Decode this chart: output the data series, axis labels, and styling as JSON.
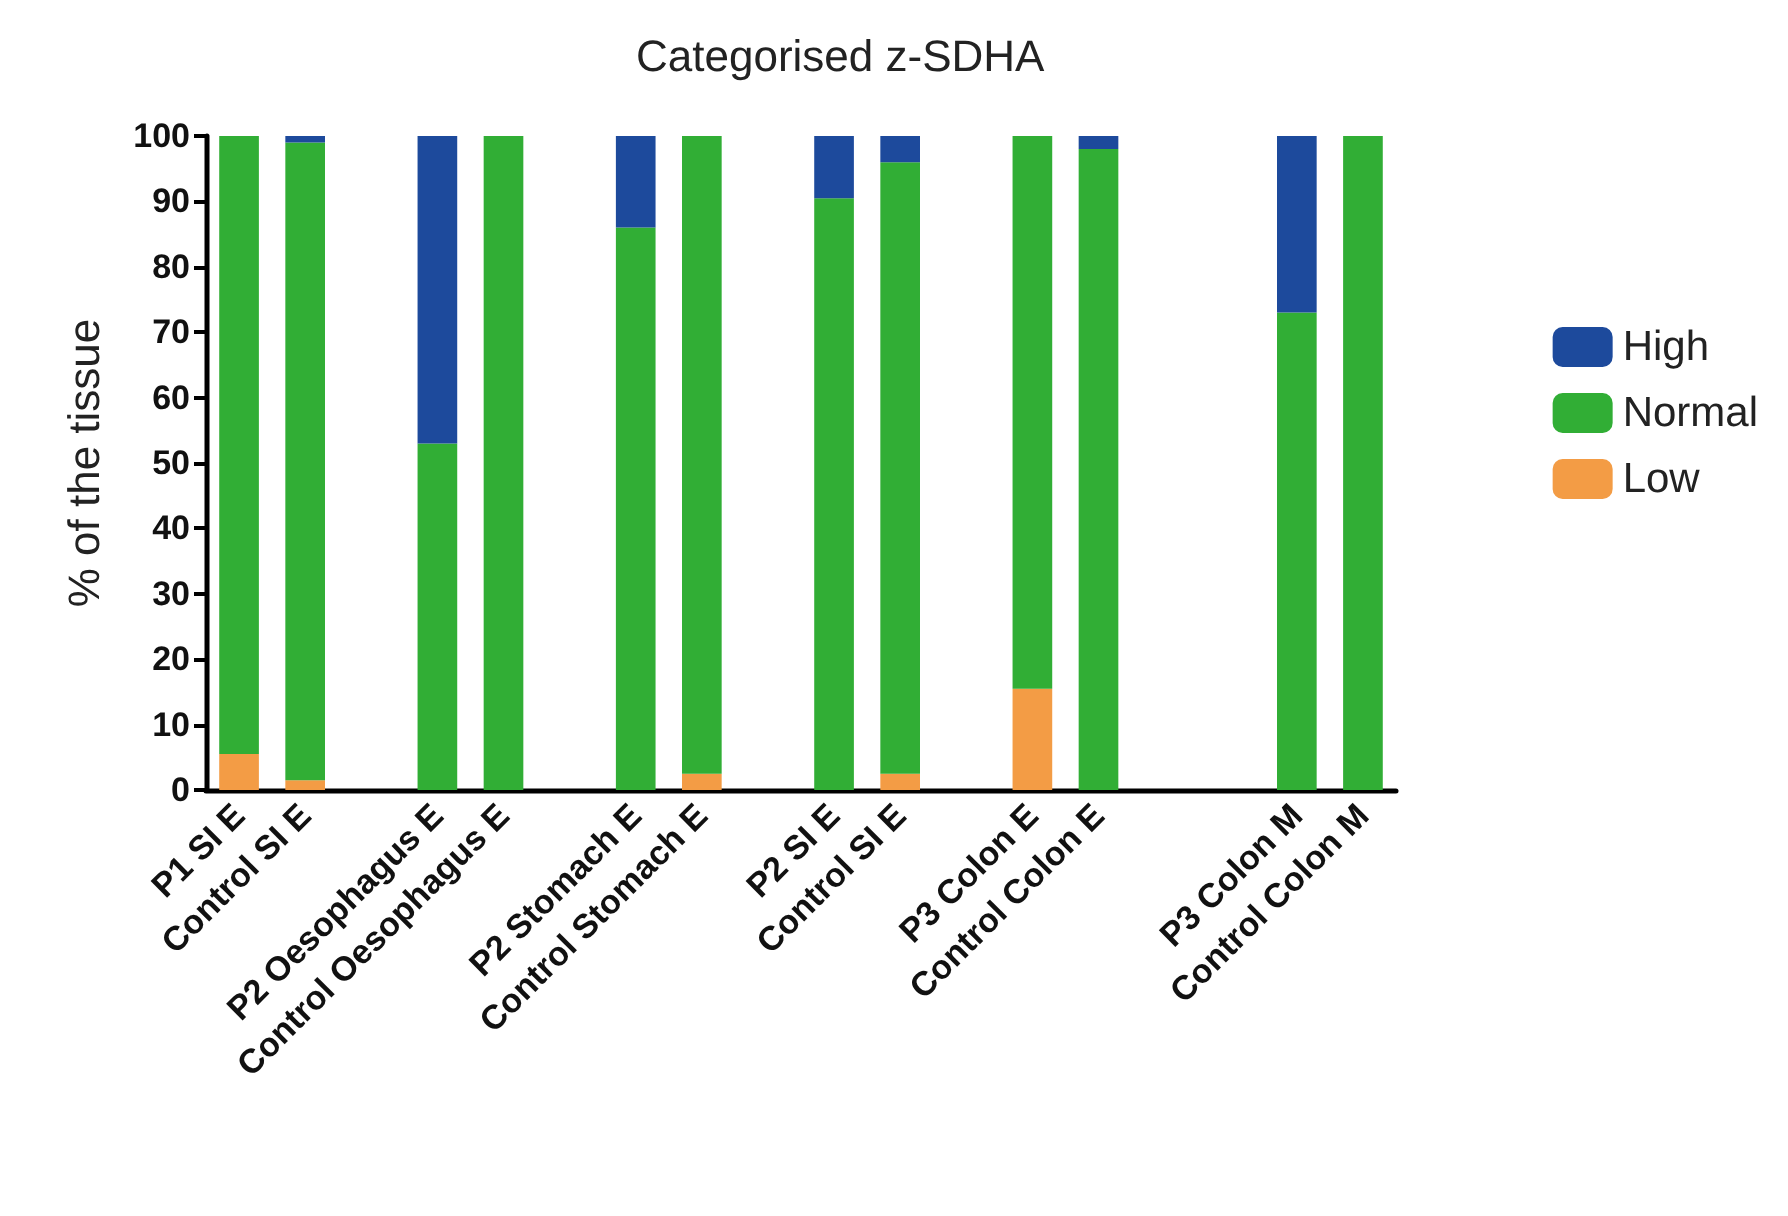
{
  "chart_data": {
    "type": "bar",
    "title": "Categorised z-SDHA",
    "ylabel": "% of the tissue",
    "stacked": true,
    "legend": "right",
    "grid": false,
    "categories": [
      "P1 SI E",
      "Control SI E",
      null,
      "P2 Oesophagus E",
      "Control Oesophagus E",
      null,
      "P2 Stomach E",
      "Control Stomach E",
      null,
      "P2 SI E",
      "Control SI E",
      null,
      "P3 Colon E",
      "Control Colon E",
      null,
      null,
      "P3 Colon M",
      "Control Colon M"
    ],
    "ylim": [
      0,
      100
    ],
    "yticks": [
      0,
      10,
      20,
      30,
      40,
      50,
      60,
      70,
      80,
      90,
      100
    ],
    "series": [
      {
        "name": "Low",
        "color": "#f39c45",
        "values": [
          5.5,
          1.5,
          null,
          0,
          0,
          null,
          0,
          2.5,
          null,
          0,
          2.5,
          null,
          15.5,
          0,
          null,
          null,
          0,
          0
        ]
      },
      {
        "name": "Normal",
        "color": "#31ae35",
        "values": [
          94.5,
          97.5,
          null,
          53,
          100,
          null,
          86,
          97.5,
          null,
          90.5,
          93.5,
          null,
          84.5,
          98,
          null,
          null,
          73,
          100
        ]
      },
      {
        "name": "High",
        "color": "#1d4a9c",
        "values": [
          0,
          1,
          null,
          47,
          0,
          null,
          14,
          0,
          null,
          9.5,
          4,
          null,
          0,
          2,
          null,
          null,
          27,
          0
        ]
      }
    ]
  }
}
